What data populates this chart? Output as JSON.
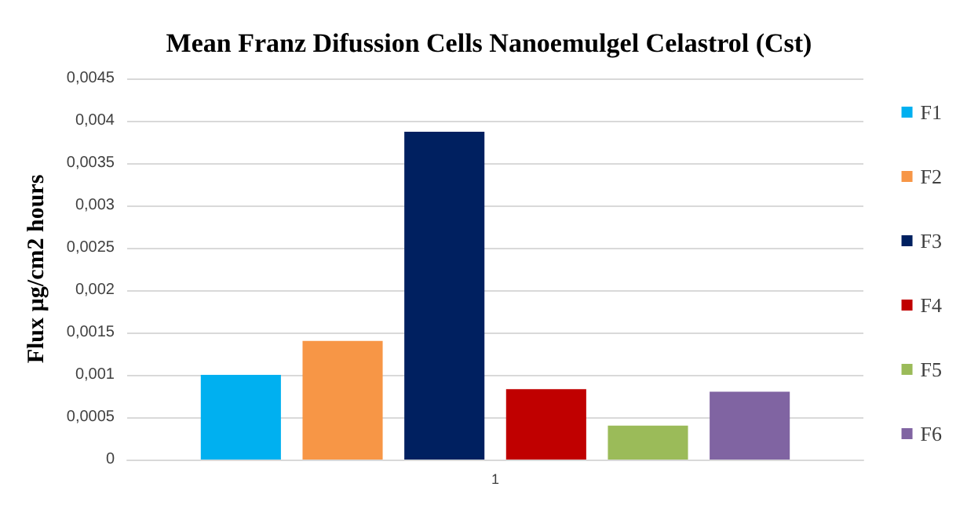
{
  "chart_data": {
    "type": "bar",
    "title": "Mean Franz Difussion Cells Nanoemulgel Celastrol (Cst)",
    "ylabel": "Flux µg/cm2 hours",
    "categories": [
      "1"
    ],
    "series": [
      {
        "name": "F1",
        "color": "#00b0f0",
        "values": [
          0.001
        ]
      },
      {
        "name": "F2",
        "color": "#f79646",
        "values": [
          0.0014
        ]
      },
      {
        "name": "F3",
        "color": "#002060",
        "values": [
          0.00387
        ]
      },
      {
        "name": "F4",
        "color": "#c00000",
        "values": [
          0.00083
        ]
      },
      {
        "name": "F5",
        "color": "#9bbb59",
        "values": [
          0.0004
        ]
      },
      {
        "name": "F6",
        "color": "#8064a2",
        "values": [
          0.0008
        ]
      }
    ],
    "ylim": [
      0,
      0.0045
    ],
    "yticks": [
      0,
      {
        "value": 0.0005,
        "label": "0,0005"
      },
      {
        "value": 0.001,
        "label": "0,001"
      },
      {
        "value": 0.0015,
        "label": "0,0015"
      },
      {
        "value": 0.002,
        "label": "0,002"
      },
      {
        "value": 0.0025,
        "label": "0,0025"
      },
      {
        "value": 0.003,
        "label": "0,003"
      },
      {
        "value": 0.0035,
        "label": "0,0035"
      },
      {
        "value": 0.004,
        "label": "0,004"
      },
      {
        "value": 0.0045,
        "label": "0,0045"
      }
    ],
    "grid": "y",
    "legend": "right"
  }
}
